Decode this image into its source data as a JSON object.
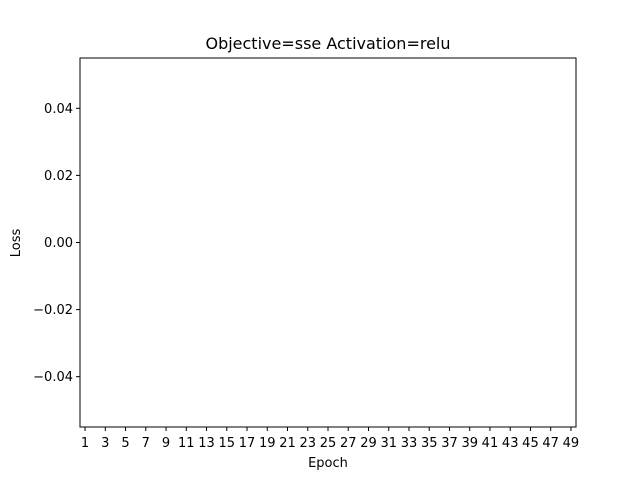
{
  "chart_data": {
    "type": "line",
    "title": "Objective=sse Activation=relu",
    "xlabel": "Epoch",
    "ylabel": "Loss",
    "x_ticks": [
      "1",
      "3",
      "5",
      "7",
      "9",
      "11",
      "13",
      "15",
      "17",
      "19",
      "21",
      "23",
      "25",
      "27",
      "29",
      "31",
      "33",
      "35",
      "37",
      "39",
      "41",
      "43",
      "45",
      "47",
      "49"
    ],
    "x_range": [
      0.5,
      49.5
    ],
    "y_ticks": [
      "0.04",
      "0.02",
      "0.00",
      "−0.02",
      "−0.04"
    ],
    "y_tick_values": [
      0.04,
      0.02,
      0.0,
      -0.02,
      -0.04
    ],
    "ylim": [
      -0.055,
      0.055
    ],
    "series": [],
    "grid": false,
    "colors": {
      "axis": "#000000",
      "background": "#ffffff"
    }
  }
}
